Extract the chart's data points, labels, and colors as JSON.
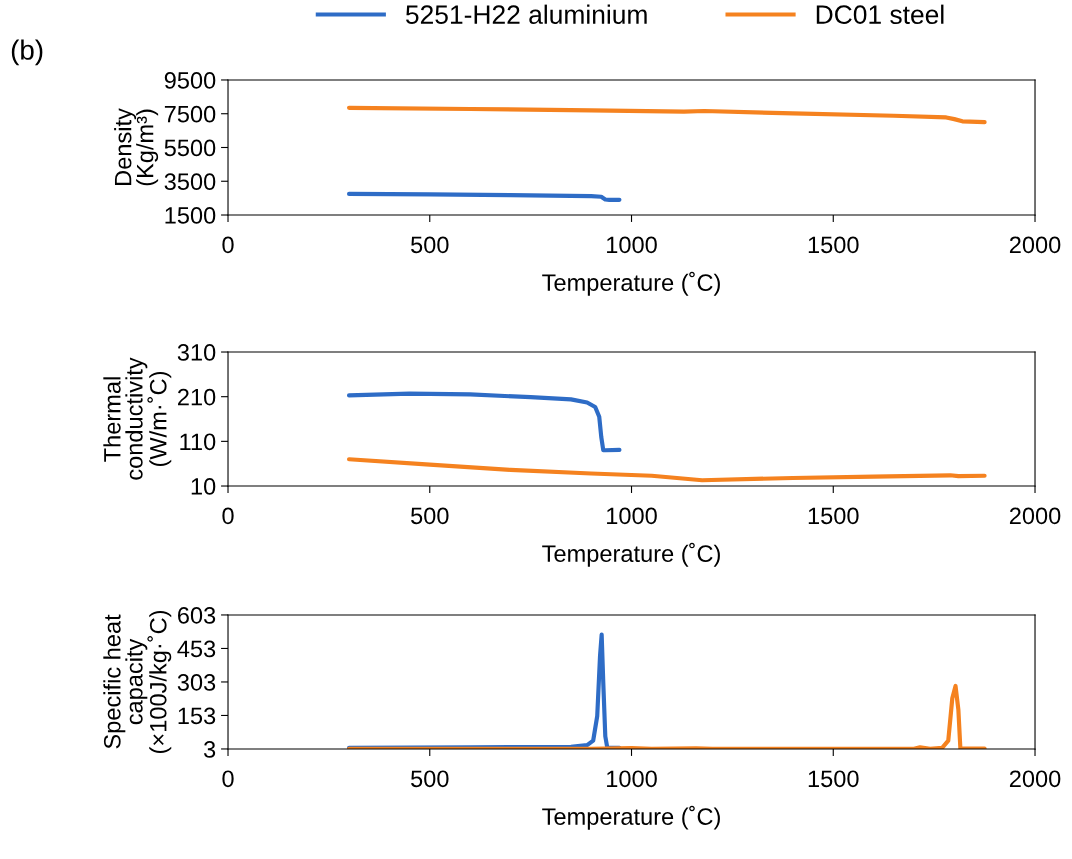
{
  "chart_data": [
    {
      "type": "line",
      "xlabel": "Temperature (˚C)",
      "ylabel": "Density\n(Kg/m³)",
      "annotations": [
        "(b)"
      ],
      "legend": "top",
      "grid": false,
      "marker": "none",
      "line_style": "solid",
      "xlim": [
        0,
        2000
      ],
      "xticks": [
        0,
        500,
        1000,
        1500,
        2000
      ],
      "ylim": [
        1500,
        9500
      ],
      "yticks": [
        1500,
        3500,
        5500,
        7500,
        9500
      ],
      "series": [
        {
          "name": "5251-H22 aluminium",
          "color": "#2e6cc6",
          "x": [
            300,
            500,
            700,
            900,
            925,
            935,
            945,
            970
          ],
          "values": [
            2750,
            2720,
            2680,
            2620,
            2580,
            2420,
            2400,
            2400
          ]
        },
        {
          "name": "DC01 steel",
          "color": "#f5821f",
          "x": [
            300,
            600,
            900,
            1130,
            1180,
            1400,
            1650,
            1780,
            1800,
            1820,
            1875
          ],
          "values": [
            7850,
            7780,
            7700,
            7620,
            7660,
            7520,
            7380,
            7280,
            7180,
            7050,
            7000
          ]
        }
      ]
    },
    {
      "type": "line",
      "xlabel": "Temperature (˚C)",
      "ylabel": "Thermal\nconductivity\n(W/m·˚C)",
      "grid": false,
      "marker": "none",
      "line_style": "solid",
      "xlim": [
        0,
        2000
      ],
      "xticks": [
        0,
        500,
        1000,
        1500,
        2000
      ],
      "ylim": [
        10,
        310
      ],
      "yticks": [
        10,
        110,
        210,
        310
      ],
      "series": [
        {
          "color": "#2e6cc6",
          "x": [
            300,
            450,
            600,
            750,
            850,
            890,
            910,
            920,
            925,
            930,
            935,
            970
          ],
          "values": [
            213,
            217,
            215,
            209,
            204,
            197,
            187,
            165,
            120,
            90,
            90,
            91
          ]
        },
        {
          "color": "#f5821f",
          "x": [
            300,
            500,
            700,
            900,
            1050,
            1175,
            1400,
            1600,
            1790,
            1810,
            1875
          ],
          "values": [
            70,
            58,
            46,
            38,
            33,
            23,
            28,
            31,
            34,
            32,
            33
          ]
        }
      ]
    },
    {
      "type": "line",
      "xlabel": "Temperature (˚C)",
      "ylabel": "Specific heat\ncapacity\n(×100J/kg·˚C)",
      "grid": false,
      "marker": "none",
      "line_style": "solid",
      "xlim": [
        0,
        2000
      ],
      "xticks": [
        0,
        500,
        1000,
        1500,
        2000
      ],
      "ylim": [
        3,
        603
      ],
      "yticks": [
        3,
        153,
        303,
        453,
        603
      ],
      "series": [
        {
          "color": "#2e6cc6",
          "x": [
            300,
            600,
            850,
            890,
            905,
            915,
            922,
            926,
            930,
            935,
            940,
            970
          ],
          "values": [
            8,
            10,
            13,
            20,
            40,
            150,
            420,
            515,
            300,
            60,
            8,
            8
          ]
        },
        {
          "color": "#f5821f",
          "x": [
            300,
            900,
            1000,
            1050,
            1160,
            1200,
            1700,
            1715,
            1740,
            1770,
            1785,
            1795,
            1803,
            1810,
            1815,
            1875
          ],
          "values": [
            4,
            4,
            7,
            4,
            6,
            4,
            4,
            10,
            4,
            8,
            40,
            230,
            285,
            180,
            5,
            5
          ]
        }
      ]
    }
  ]
}
